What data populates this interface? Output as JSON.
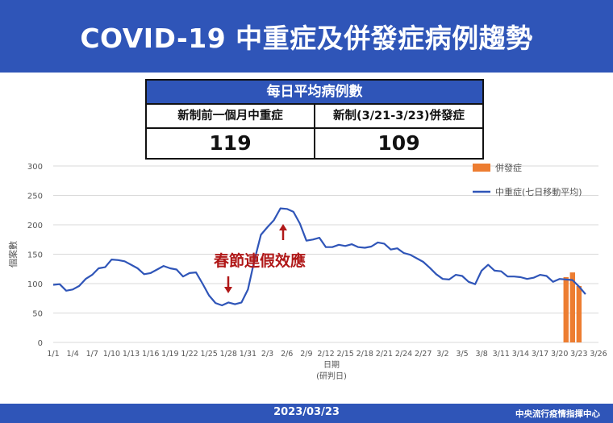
{
  "header": {
    "title": "COVID-19 中重症及併發症病例趨勢"
  },
  "summary": {
    "heading": "每日平均病例數",
    "columns": [
      {
        "label": "新制前一個月中重症",
        "value": "119"
      },
      {
        "label": "新制(3/21-3/23)併發症",
        "value": "109"
      }
    ]
  },
  "colors": {
    "brand": "#2f55b8",
    "line": "#2f55b8",
    "bar": "#ed7d31",
    "annotation": "#b01818"
  },
  "annotation": {
    "text": "春節連假效應",
    "icon": "red-arrow-icon"
  },
  "footer": {
    "date": "2023/03/23",
    "org": "中央流行疫情指揮中心"
  },
  "chart_data": {
    "type": "line",
    "ylabel": "個案數",
    "xlabel": "日期",
    "xlabel_sub": "(研判日)",
    "ylim": [
      0,
      300
    ],
    "yticks": [
      0,
      50,
      100,
      150,
      200,
      250,
      300
    ],
    "x_tick_labels": [
      "1/1",
      "1/4",
      "1/7",
      "1/10",
      "1/13",
      "1/16",
      "1/19",
      "1/22",
      "1/25",
      "1/28",
      "1/31",
      "2/3",
      "2/6",
      "2/9",
      "2/12",
      "2/15",
      "2/18",
      "2/21",
      "2/24",
      "2/27",
      "3/2",
      "3/5",
      "3/8",
      "3/11",
      "3/14",
      "3/17",
      "3/20",
      "3/23",
      "3/26"
    ],
    "x_tick_step_days": 3,
    "grid": "horizontal",
    "legend": "top-right",
    "series": [
      {
        "name": "中重症(七日移動平均)",
        "kind": "line",
        "start_date": "1/1",
        "values": [
          98,
          99,
          88,
          90,
          96,
          108,
          115,
          126,
          128,
          141,
          140,
          138,
          132,
          126,
          116,
          118,
          124,
          130,
          126,
          124,
          112,
          118,
          119,
          100,
          80,
          67,
          63,
          68,
          65,
          68,
          90,
          140,
          183,
          196,
          208,
          228,
          227,
          222,
          202,
          173,
          175,
          178,
          162,
          162,
          166,
          164,
          167,
          162,
          161,
          163,
          170,
          168,
          158,
          160,
          152,
          149,
          143,
          137,
          127,
          116,
          108,
          107,
          115,
          113,
          103,
          99,
          122,
          132,
          122,
          121,
          112,
          112,
          111,
          108,
          110,
          115,
          113,
          103,
          108,
          107,
          106,
          95,
          82
        ]
      },
      {
        "name": "併發症",
        "kind": "bar",
        "categories": [
          "3/21",
          "3/22",
          "3/23"
        ],
        "values": [
          111,
          119,
          96
        ]
      }
    ]
  }
}
